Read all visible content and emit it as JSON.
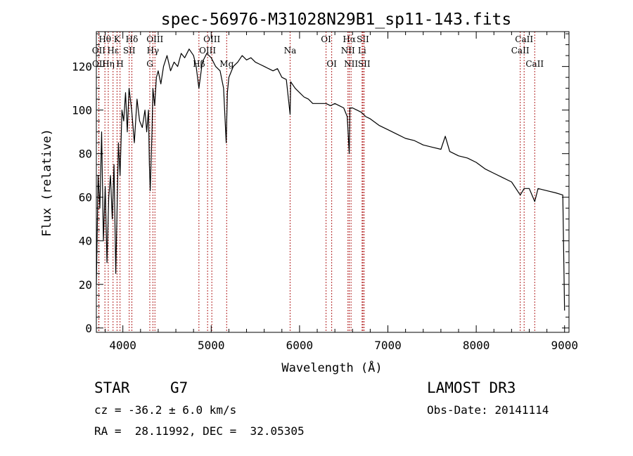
{
  "chart_data": {
    "type": "line",
    "title": "spec-56976-M31028N29B1_sp11-143.fits",
    "xlabel": "Wavelength (Å)",
    "ylabel": "Flux (relative)",
    "xlim": [
      3700,
      9050
    ],
    "ylim": [
      -2,
      136
    ],
    "xticks": [
      4000,
      5000,
      6000,
      7000,
      8000,
      9000
    ],
    "yticks": [
      0,
      20,
      40,
      60,
      80,
      100,
      120
    ],
    "x_minor_step": 200,
    "y_minor_step": 5,
    "series": [
      {
        "name": "spectrum",
        "x": [
          3700,
          3720,
          3740,
          3760,
          3780,
          3800,
          3820,
          3840,
          3860,
          3880,
          3900,
          3920,
          3935,
          3950,
          3968,
          3990,
          4010,
          4030,
          4050,
          4070,
          4100,
          4130,
          4160,
          4190,
          4220,
          4250,
          4270,
          4290,
          4300,
          4310,
          4330,
          4340,
          4360,
          4380,
          4400,
          4430,
          4460,
          4500,
          4540,
          4580,
          4620,
          4660,
          4700,
          4750,
          4800,
          4830,
          4861,
          4900,
          4950,
          5000,
          5050,
          5100,
          5140,
          5170,
          5183,
          5200,
          5250,
          5300,
          5350,
          5400,
          5450,
          5500,
          5550,
          5600,
          5650,
          5700,
          5750,
          5800,
          5850,
          5893,
          5900,
          5950,
          6000,
          6050,
          6100,
          6150,
          6200,
          6250,
          6300,
          6350,
          6400,
          6450,
          6500,
          6540,
          6563,
          6570,
          6600,
          6650,
          6700,
          6750,
          6800,
          6900,
          7000,
          7100,
          7200,
          7300,
          7400,
          7500,
          7600,
          7650,
          7700,
          7800,
          7900,
          8000,
          8100,
          8200,
          8300,
          8400,
          8498,
          8542,
          8600,
          8662,
          8700,
          8800,
          8900,
          8980,
          9000
        ],
        "y": [
          20,
          70,
          55,
          90,
          40,
          65,
          30,
          60,
          70,
          50,
          75,
          25,
          55,
          85,
          70,
          100,
          95,
          108,
          90,
          110,
          100,
          85,
          105,
          95,
          92,
          100,
          90,
          100,
          75,
          63,
          90,
          110,
          102,
          115,
          118,
          112,
          120,
          125,
          118,
          122,
          120,
          126,
          124,
          128,
          125,
          120,
          110,
          122,
          126,
          124,
          120,
          118,
          110,
          85,
          108,
          115,
          120,
          122,
          125,
          123,
          124,
          122,
          121,
          120,
          119,
          118,
          119,
          115,
          114,
          98,
          113,
          110,
          108,
          106,
          105,
          103,
          103,
          103,
          103,
          102,
          103,
          102,
          101,
          97,
          80,
          101,
          101,
          100,
          99,
          97,
          96,
          93,
          91,
          89,
          87,
          86,
          84,
          83,
          82,
          88,
          81,
          79,
          78,
          76,
          73,
          71,
          69,
          67,
          61,
          64,
          64,
          58,
          64,
          63,
          62,
          61,
          8
        ]
      }
    ],
    "lines": [
      {
        "label": "Hθ",
        "x": 3797,
        "row": 1
      },
      {
        "label": "OII",
        "x": 3727,
        "row": 2
      },
      {
        "label": "OII",
        "x": 3729,
        "row": 3
      },
      {
        "label": "K",
        "x": 3934,
        "row": 1
      },
      {
        "label": "Hε",
        "x": 3889,
        "row": 2
      },
      {
        "label": "Hη",
        "x": 3835,
        "row": 3
      },
      {
        "label": "H",
        "x": 3968,
        "row": 3
      },
      {
        "label": "Hδ",
        "x": 4102,
        "row": 1
      },
      {
        "label": "SII",
        "x": 4072,
        "row": 2
      },
      {
        "label": "OIII",
        "x": 4363,
        "row": 1
      },
      {
        "label": "Hγ",
        "x": 4340,
        "row": 2
      },
      {
        "label": "G",
        "x": 4305,
        "row": 3
      },
      {
        "label": "OIII",
        "x": 5007,
        "row": 1
      },
      {
        "label": "OIII",
        "x": 4959,
        "row": 2
      },
      {
        "label": "Hβ",
        "x": 4861,
        "row": 3
      },
      {
        "label": "Mg",
        "x": 5175,
        "row": 3
      },
      {
        "label": "Na",
        "x": 5893,
        "row": 2
      },
      {
        "label": "OI",
        "x": 6300,
        "row": 1
      },
      {
        "label": "OI",
        "x": 6364,
        "row": 3
      },
      {
        "label": "Hα",
        "x": 6563,
        "row": 1
      },
      {
        "label": "SII",
        "x": 6717,
        "row": 1
      },
      {
        "label": "NII",
        "x": 6548,
        "row": 2
      },
      {
        "label": "Li",
        "x": 6708,
        "row": 2
      },
      {
        "label": "NII",
        "x": 6583,
        "row": 3
      },
      {
        "label": "SII",
        "x": 6731,
        "row": 3
      },
      {
        "label": "CaII",
        "x": 8542,
        "row": 1
      },
      {
        "label": "CaII",
        "x": 8498,
        "row": 2
      },
      {
        "label": "CaII",
        "x": 8662,
        "row": 3
      }
    ]
  },
  "info": {
    "class_label": "STAR",
    "subclass": "G7",
    "survey": "LAMOST DR3",
    "redshift": "cz = -36.2 ± 6.0 km/s",
    "obs_date": "Obs-Date: 20141114",
    "coords": "RA =  28.11992, DEC =  32.05305"
  },
  "colors": {
    "line_marker": "#b22222",
    "spectrum": "#000000",
    "axis": "#000000"
  }
}
